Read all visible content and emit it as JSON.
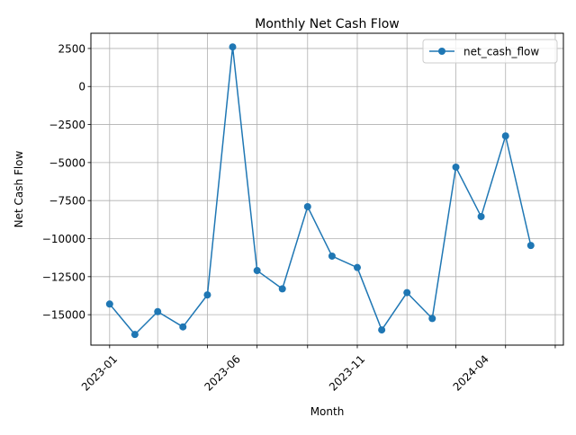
{
  "chart_data": {
    "type": "line",
    "title": "Monthly Net Cash Flow",
    "xlabel": "Month",
    "ylabel": "Net Cash Flow",
    "x": [
      "2023-01",
      "2023-02",
      "2023-03",
      "2023-04",
      "2023-05",
      "2023-06",
      "2023-07",
      "2023-08",
      "2023-09",
      "2023-10",
      "2023-11",
      "2023-12",
      "2024-01",
      "2024-02",
      "2024-03",
      "2024-04",
      "2024-05",
      "2024-06"
    ],
    "series": [
      {
        "name": "net_cash_flow",
        "color": "#1f77b4",
        "marker": "circle",
        "values": [
          -14300,
          -16300,
          -14800,
          -15800,
          -13700,
          2600,
          -12100,
          -13300,
          -7900,
          -11150,
          -11900,
          -16000,
          -13550,
          -15250,
          -5300,
          -8550,
          -3250,
          -10450
        ]
      }
    ],
    "x_ticks": [
      "2023-01",
      "2023-06",
      "2023-11",
      "2024-04"
    ],
    "y_ticks": [
      2500,
      0,
      -2500,
      -5000,
      -7500,
      -10000,
      -12500,
      -15000
    ],
    "y_tick_labels": [
      "2500",
      "0",
      "−2500",
      "−5000",
      "−7500",
      "−10000",
      "−12500",
      "−15000"
    ],
    "ylim": [
      -17000,
      3500
    ],
    "xlim": [
      "2022-12-09",
      "2024-07-11"
    ],
    "x_tick_rotation": 45,
    "grid": true,
    "legend_position": "top-right"
  }
}
